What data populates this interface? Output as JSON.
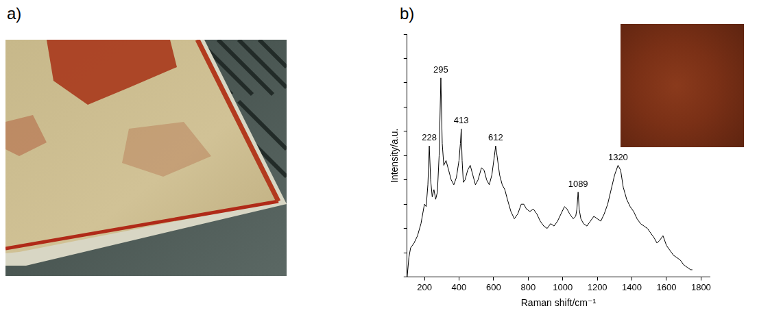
{
  "panel_labels": [
    "a)",
    "b)"
  ],
  "chart_data": {
    "type": "line",
    "x_label": "Raman shift/cm⁻¹",
    "y_label": "Intensity/a.u.",
    "x": [
      100,
      110,
      120,
      140,
      160,
      180,
      200,
      210,
      220,
      228,
      236,
      245,
      255,
      265,
      275,
      285,
      295,
      303,
      312,
      325,
      340,
      355,
      370,
      385,
      400,
      408,
      413,
      418,
      425,
      435,
      450,
      465,
      480,
      495,
      510,
      530,
      545,
      560,
      575,
      590,
      605,
      612,
      620,
      635,
      650,
      665,
      680,
      700,
      720,
      740,
      760,
      775,
      790,
      810,
      830,
      850,
      870,
      890,
      910,
      930,
      950,
      970,
      990,
      1010,
      1025,
      1040,
      1060,
      1075,
      1082,
      1089,
      1095,
      1105,
      1120,
      1140,
      1160,
      1180,
      1200,
      1220,
      1240,
      1260,
      1280,
      1300,
      1320,
      1335,
      1350,
      1370,
      1390,
      1410,
      1430,
      1450,
      1470,
      1490,
      1510,
      1530,
      1545,
      1560,
      1580,
      1600,
      1620,
      1640,
      1660,
      1680,
      1700,
      1720,
      1740,
      1750
    ],
    "values": [
      0,
      8,
      12,
      14,
      17,
      22,
      30,
      29,
      38,
      54,
      40,
      33,
      36,
      32,
      35,
      50,
      82,
      55,
      46,
      48,
      44,
      40,
      38,
      41,
      48,
      55,
      61,
      48,
      39,
      40,
      44,
      46,
      42,
      38,
      40,
      45,
      44,
      40,
      38,
      42,
      50,
      54,
      50,
      42,
      38,
      36,
      32,
      27,
      24,
      26,
      30,
      30,
      28,
      27,
      28,
      26,
      23,
      21,
      20,
      22,
      21,
      23,
      26,
      29,
      28,
      26,
      24,
      25,
      28,
      35,
      28,
      24,
      22,
      21,
      23,
      25,
      24,
      23,
      26,
      30,
      36,
      42,
      46,
      44,
      37,
      32,
      29,
      27,
      24,
      22,
      21,
      20,
      18,
      16,
      14,
      15,
      17,
      13,
      11,
      9,
      8,
      7,
      5,
      4,
      3,
      3
    ],
    "color": "#000000",
    "xlim": [
      100,
      1850
    ],
    "xticks": [
      200,
      400,
      600,
      800,
      1000,
      1200,
      1400,
      1600,
      1800
    ],
    "ylim": [
      0,
      100
    ],
    "yticks": [
      0,
      10,
      20,
      30,
      40,
      50,
      60,
      70,
      80,
      90,
      100
    ],
    "grid": false,
    "tick_labels": "x",
    "peak_labels": [
      {
        "x": 228,
        "y": 54
      },
      {
        "x": 295,
        "y": 82
      },
      {
        "x": 413,
        "y": 61
      },
      {
        "x": 612,
        "y": 54
      },
      {
        "x": 1089,
        "y": 35
      },
      {
        "x": 1320,
        "y": 46
      }
    ]
  }
}
